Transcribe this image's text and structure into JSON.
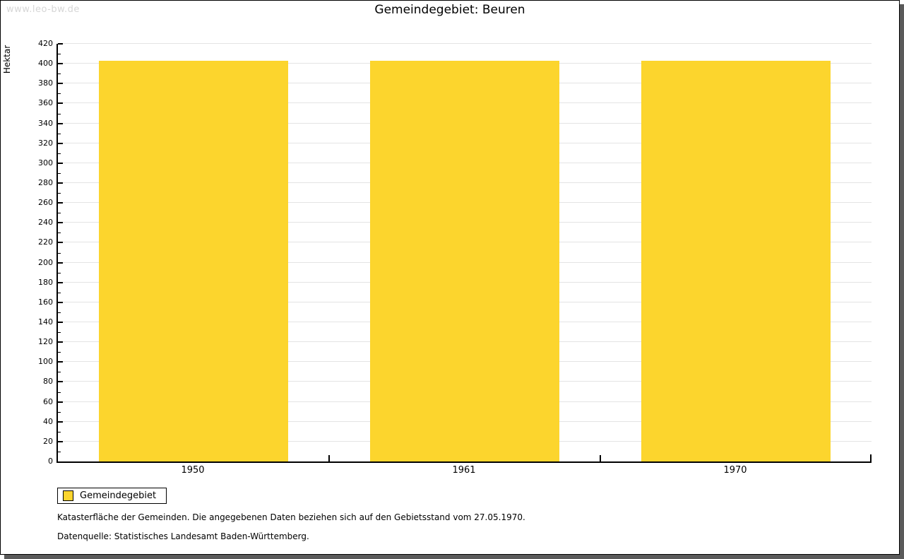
{
  "page": {
    "watermark": "www.leo-bw.de",
    "title": "Gemeindegebiet: Beuren"
  },
  "chart_data": {
    "type": "bar",
    "title": "Gemeindegebiet: Beuren",
    "categories": [
      "1950",
      "1961",
      "1970"
    ],
    "series": [
      {
        "name": "Gemeindegebiet",
        "values": [
          403,
          403,
          403
        ]
      }
    ],
    "xlabel": "",
    "ylabel": "Hektar",
    "ylim": [
      0,
      420
    ],
    "ytick_step": 20,
    "yminor_step": 10,
    "grid": true,
    "bar_color": "#FCD52D",
    "grid_color": "#E4E4E4",
    "legend_position": "bottom-left"
  },
  "footnotes": [
    "Katasterfläche der Gemeinden. Die angegebenen Daten beziehen sich auf den Gebietsstand vom 27.05.1970.",
    "Datenquelle: Statistisches Landesamt Baden-Württemberg."
  ]
}
